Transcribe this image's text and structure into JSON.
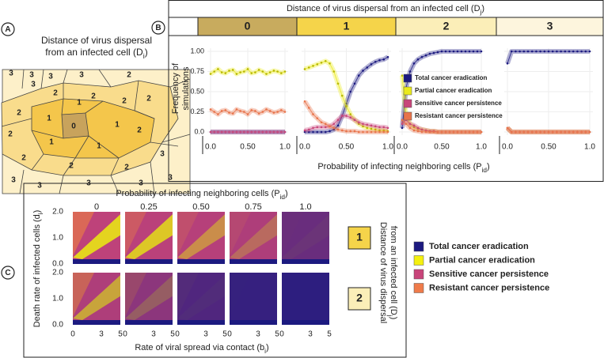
{
  "panel_a": {
    "label": "A",
    "title_line1": "Distance of virus dispersal",
    "title_line2": "from an infected cell (D",
    "title_sub": "i",
    "title_end": ")",
    "cells": [
      "3",
      "3",
      "3",
      "3",
      "2",
      "3",
      "2",
      "2",
      "2",
      "2",
      "1",
      "1",
      "2",
      "1",
      "2",
      "0",
      "2",
      "1",
      "1",
      "2",
      "2",
      "2",
      "3",
      "3",
      "3",
      "3",
      "3",
      "3"
    ]
  },
  "chart_data": {
    "type": "line",
    "label": "B",
    "title": "Distance of virus dispersal from an infected cell (D",
    "title_sub": "j",
    "title_end": ")",
    "x_label": "Probability of infecting neighboring cells (P",
    "x_label_sub": "id",
    "x_label_end": ")",
    "y_label_line1": "Frequency of",
    "y_label_line2": "simulations",
    "xlim": [
      0,
      1
    ],
    "ylim": [
      0,
      1
    ],
    "yticks": [
      {
        "value": 1,
        "label": "1.00"
      },
      0.75,
      {
        "value": 0.5,
        "label": "0.50"
      },
      0.25,
      {
        "value": 0,
        "label": "0.0"
      }
    ],
    "xticks": [
      {
        "value": 0,
        "label": "0.0"
      },
      {
        "value": 0.5,
        "label": "0.50"
      },
      {
        "value": 1,
        "label": "1.0"
      }
    ],
    "grid": true,
    "x": [
      0,
      0.05,
      0.1,
      0.15,
      0.2,
      0.25,
      0.3,
      0.35,
      0.4,
      0.45,
      0.5,
      0.55,
      0.6,
      0.65,
      0.7,
      0.75,
      0.8,
      0.85,
      0.9,
      0.95,
      1
    ],
    "series": [
      {
        "name": "Total cancer eradication",
        "color": "#1c1a80"
      },
      {
        "name": "Partial cancer eradication",
        "color": "#eaea1c"
      },
      {
        "name": "Sensitive cancer persistence",
        "color": "#c8457a"
      },
      {
        "name": "Resistant cancer persistence",
        "color": "#e8734a"
      }
    ],
    "panels": [
      {
        "label": "0",
        "color": "#c8ab5e",
        "series": [
          {
            "values": [
              0,
              0,
              0,
              0,
              0,
              0,
              0,
              0,
              0,
              0,
              0,
              0,
              0,
              0,
              0,
              0,
              0,
              0,
              0,
              0,
              0
            ]
          },
          {
            "values": [
              0.72,
              0.75,
              0.78,
              0.74,
              0.73,
              0.76,
              0.77,
              0.72,
              0.74,
              0.75,
              0.78,
              0.73,
              0.74,
              0.77,
              0.75,
              0.72,
              0.74,
              0.76,
              0.75,
              0.73,
              0.75
            ]
          },
          {
            "values": [
              0,
              0,
              0,
              0,
              0,
              0,
              0,
              0,
              0,
              0,
              0,
              0,
              0,
              0,
              0,
              0,
              0,
              0,
              0,
              0,
              0
            ]
          },
          {
            "values": [
              0.28,
              0.25,
              0.22,
              0.26,
              0.27,
              0.24,
              0.23,
              0.28,
              0.26,
              0.25,
              0.22,
              0.27,
              0.26,
              0.23,
              0.25,
              0.28,
              0.26,
              0.24,
              0.25,
              0.27,
              0.25
            ]
          }
        ]
      },
      {
        "label": "1",
        "color": "#f5d44a",
        "series": [
          {
            "values": [
              0,
              0,
              0,
              0,
              0,
              0,
              0.01,
              0.03,
              0.08,
              0.2,
              0.35,
              0.5,
              0.6,
              0.7,
              0.76,
              0.8,
              0.84,
              0.87,
              0.89,
              0.9,
              0.93
            ]
          },
          {
            "values": [
              0.78,
              0.8,
              0.82,
              0.84,
              0.86,
              0.88,
              0.85,
              0.75,
              0.6,
              0.45,
              0.32,
              0.22,
              0.15,
              0.1,
              0.07,
              0.05,
              0.04,
              0.03,
              0.02,
              0.02,
              0.01
            ]
          },
          {
            "values": [
              0.02,
              0.03,
              0.05,
              0.06,
              0.06,
              0.06,
              0.07,
              0.1,
              0.15,
              0.2,
              0.2,
              0.18,
              0.15,
              0.12,
              0.1,
              0.09,
              0.08,
              0.07,
              0.06,
              0.06,
              0.05
            ]
          },
          {
            "values": [
              0.38,
              0.3,
              0.22,
              0.17,
              0.12,
              0.1,
              0.07,
              0.05,
              0.03,
              0.02,
              0.01,
              0.01,
              0.01,
              0,
              0,
              0,
              0,
              0,
              0,
              0,
              0
            ]
          }
        ]
      },
      {
        "label": "2",
        "color": "#fbeeb8",
        "series": [
          {
            "values": [
              0.05,
              0.55,
              0.75,
              0.85,
              0.9,
              0.93,
              0.95,
              0.97,
              0.98,
              0.99,
              1,
              1,
              1,
              1,
              1,
              1,
              1,
              1,
              1,
              1,
              1
            ]
          },
          {
            "values": [
              0.7,
              0.2,
              0.1,
              0.06,
              0.04,
              0.03,
              0.02,
              0.01,
              0.01,
              0,
              0,
              0,
              0,
              0,
              0,
              0,
              0,
              0,
              0,
              0,
              0
            ]
          },
          {
            "values": [
              0.1,
              0.15,
              0.1,
              0.08,
              0.05,
              0.03,
              0.02,
              0.01,
              0.01,
              0,
              0,
              0,
              0,
              0,
              0,
              0,
              0,
              0,
              0,
              0,
              0
            ]
          },
          {
            "values": [
              0.15,
              0.1,
              0.05,
              0.02,
              0.01,
              0,
              0,
              0,
              0,
              0,
              0,
              0,
              0,
              0,
              0,
              0,
              0,
              0,
              0,
              0,
              0
            ]
          }
        ]
      },
      {
        "label": "3",
        "color": "#fdf5dd",
        "series": [
          {
            "values": [
              0.85,
              1,
              1,
              1,
              1,
              1,
              1,
              1,
              1,
              1,
              1,
              1,
              1,
              1,
              1,
              1,
              1,
              1,
              1,
              1,
              1
            ]
          },
          {
            "values": [
              0.05,
              0,
              0,
              0,
              0,
              0,
              0,
              0,
              0,
              0,
              0,
              0,
              0,
              0,
              0,
              0,
              0,
              0,
              0,
              0,
              0
            ]
          },
          {
            "values": [
              0.05,
              0,
              0,
              0,
              0,
              0,
              0,
              0,
              0,
              0,
              0,
              0,
              0,
              0,
              0,
              0,
              0,
              0,
              0,
              0,
              0
            ]
          },
          {
            "values": [
              0.05,
              0,
              0,
              0,
              0,
              0,
              0,
              0,
              0,
              0,
              0,
              0,
              0,
              0,
              0,
              0,
              0,
              0,
              0,
              0,
              0
            ]
          }
        ]
      }
    ]
  },
  "panel_c": {
    "label": "C",
    "title": "Probability of infecting neighboring cells (P",
    "title_sub": "id",
    "title_end": ")",
    "columns": [
      "0",
      "0.25",
      "0.50",
      "0.75",
      "1.0"
    ],
    "rows": [
      "1",
      "2"
    ],
    "y_label": "Death rate of infected cells (d",
    "y_label_sub": "i",
    "y_label_end": ")",
    "x_label": "Rate of viral spread via contact (b",
    "x_label_sub": "i",
    "x_label_end": ")",
    "right_label_line1": "Distance of virus dispersal",
    "right_label_line2": "from an infected cell (D",
    "right_label_sub": "j",
    "right_label_end": ")",
    "xlim": [
      0,
      5
    ],
    "xticks": [
      0,
      3,
      5
    ],
    "ylim": [
      0,
      2
    ],
    "yticks": [
      {
        "value": 2,
        "label": "2.0"
      },
      {
        "value": 1,
        "label": "1.0"
      },
      {
        "value": 0,
        "label": "0.0"
      }
    ],
    "legend": [
      {
        "name": "Total cancer eradication",
        "color": "#1c1a80"
      },
      {
        "name": "Partial cancer eradication",
        "color": "#f4f00f"
      },
      {
        "name": "Sensitive cancer persistence",
        "color": "#c8457a"
      },
      {
        "name": "Resistant cancer persistence",
        "color": "#ef7b4a"
      }
    ]
  }
}
